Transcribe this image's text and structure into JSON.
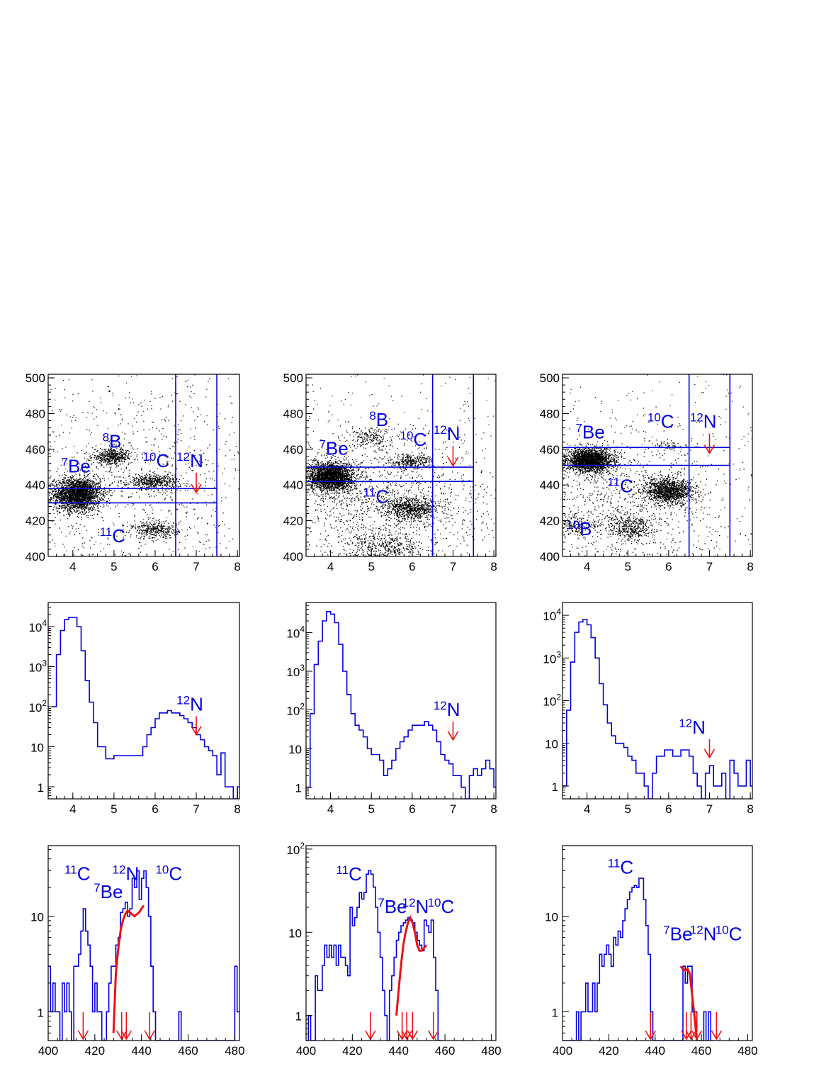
{
  "colors": {
    "frame": "#000000",
    "hist": "#0000dd",
    "gate": "#0000dd",
    "fit": "#ee1111",
    "arrow": "#ee1111",
    "scatter": "#000000",
    "labels": "#0000dd"
  },
  "chart_data": [
    {
      "type": "scatter",
      "panel": "row1-col1",
      "xlim": [
        3.4,
        8.05
      ],
      "ylim": [
        400,
        502
      ],
      "xticks": [
        4,
        5,
        6,
        7,
        8
      ],
      "yticks": [
        400,
        420,
        440,
        460,
        480,
        500
      ],
      "clusters": [
        {
          "x": 4.1,
          "y": 435,
          "sx": 0.28,
          "sy": 4.5,
          "n": 2600
        },
        {
          "x": 4.95,
          "y": 456,
          "sx": 0.25,
          "sy": 2.2,
          "n": 500
        },
        {
          "x": 5.95,
          "y": 442,
          "sx": 0.32,
          "sy": 2.2,
          "n": 500
        },
        {
          "x": 6.0,
          "y": 415,
          "sx": 0.28,
          "sy": 2.5,
          "n": 330
        },
        {
          "x": 5.5,
          "y": 440,
          "sx": 1.6,
          "sy": 28,
          "n": 700
        }
      ],
      "gate": {
        "x": [
          6.5,
          7.5
        ],
        "y": [
          430,
          438
        ]
      },
      "labels": [
        {
          "iso": "7",
          "el": "Be",
          "x": 3.72,
          "y": 447
        },
        {
          "iso": "8",
          "el": "B",
          "x": 4.72,
          "y": 461
        },
        {
          "iso": "10",
          "el": "C",
          "x": 5.7,
          "y": 450
        },
        {
          "iso": "11",
          "el": "C",
          "x": 4.65,
          "y": 408
        },
        {
          "iso": "12",
          "el": "N",
          "x": 6.52,
          "y": 450
        }
      ],
      "arrows_x": [
        7.0
      ]
    },
    {
      "type": "scatter",
      "panel": "row1-col2",
      "xlim": [
        3.4,
        8.05
      ],
      "ylim": [
        400,
        502
      ],
      "xticks": [
        4,
        5,
        6,
        7,
        8
      ],
      "yticks": [
        400,
        420,
        440,
        460,
        480,
        500
      ],
      "clusters": [
        {
          "x": 4.0,
          "y": 445,
          "sx": 0.27,
          "sy": 4,
          "n": 2500
        },
        {
          "x": 6.0,
          "y": 427,
          "sx": 0.33,
          "sy": 3,
          "n": 650
        },
        {
          "x": 5.95,
          "y": 453,
          "sx": 0.28,
          "sy": 2,
          "n": 300
        },
        {
          "x": 5.0,
          "y": 466,
          "sx": 0.3,
          "sy": 3,
          "n": 200
        },
        {
          "x": 5.3,
          "y": 405,
          "sx": 0.45,
          "sy": 4,
          "n": 400
        },
        {
          "x": 5.3,
          "y": 430,
          "sx": 1.3,
          "sy": 18,
          "n": 1300
        }
      ],
      "gate": {
        "x": [
          6.5,
          7.5
        ],
        "y": [
          442,
          450
        ]
      },
      "labels": [
        {
          "iso": "7",
          "el": "Be",
          "x": 3.72,
          "y": 457
        },
        {
          "iso": "8",
          "el": "B",
          "x": 4.95,
          "y": 473
        },
        {
          "iso": "10",
          "el": "C",
          "x": 5.7,
          "y": 462
        },
        {
          "iso": "11",
          "el": "C",
          "x": 4.8,
          "y": 430
        },
        {
          "iso": "12",
          "el": "N",
          "x": 6.52,
          "y": 465
        }
      ],
      "arrows_x": [
        7.0
      ]
    },
    {
      "type": "scatter",
      "panel": "row1-col3",
      "xlim": [
        3.4,
        8.05
      ],
      "ylim": [
        400,
        502
      ],
      "xticks": [
        4,
        5,
        6,
        7,
        8
      ],
      "yticks": [
        400,
        420,
        440,
        460,
        480,
        500
      ],
      "clusters": [
        {
          "x": 4.05,
          "y": 454,
          "sx": 0.28,
          "sy": 3.2,
          "n": 2300
        },
        {
          "x": 6.0,
          "y": 437,
          "sx": 0.3,
          "sy": 3.5,
          "n": 1300
        },
        {
          "x": 5.05,
          "y": 416,
          "sx": 0.25,
          "sy": 3,
          "n": 350
        },
        {
          "x": 3.7,
          "y": 418,
          "sx": 0.3,
          "sy": 3,
          "n": 200
        },
        {
          "x": 6.0,
          "y": 462,
          "sx": 0.25,
          "sy": 1.5,
          "n": 60
        },
        {
          "x": 5.0,
          "y": 430,
          "sx": 1.2,
          "sy": 18,
          "n": 900
        }
      ],
      "gate": {
        "x": [
          6.5,
          7.5
        ],
        "y": [
          451,
          461
        ]
      },
      "labels": [
        {
          "iso": "7",
          "el": "Be",
          "x": 3.72,
          "y": 466
        },
        {
          "iso": "10",
          "el": "C",
          "x": 5.48,
          "y": 472
        },
        {
          "iso": "11",
          "el": "C",
          "x": 4.5,
          "y": 436
        },
        {
          "iso": "10",
          "el": "B",
          "x": 3.49,
          "y": 412
        },
        {
          "iso": "12",
          "el": "N",
          "x": 6.52,
          "y": 472
        }
      ],
      "arrows_x": [
        7.0
      ]
    },
    {
      "type": "histogram",
      "panel": "row2-col1",
      "log": true,
      "xlim": [
        3.4,
        8.05
      ],
      "ylim": [
        0.5,
        40000
      ],
      "xticks": [
        4,
        5,
        6,
        7,
        8
      ],
      "yticks": [
        1,
        10,
        100,
        1000,
        10000
      ],
      "ytick_labels": [
        [
          "1",
          ""
        ],
        [
          "10",
          ""
        ],
        [
          "10",
          "2"
        ],
        [
          "10",
          "3"
        ],
        [
          "10",
          "4"
        ]
      ],
      "x_start": 3.5,
      "bin_width": 0.1,
      "values": [
        100,
        2000,
        8000,
        15000,
        17000,
        17000,
        10000,
        2500,
        450,
        130,
        40,
        10,
        10,
        5,
        5,
        6,
        6,
        6,
        6,
        6,
        6,
        6,
        10,
        20,
        30,
        50,
        70,
        70,
        80,
        70,
        70,
        60,
        50,
        40,
        30,
        20,
        15,
        10,
        8,
        6,
        2,
        7,
        1,
        1,
        0.5,
        1
      ],
      "label": {
        "iso": "12",
        "el": "N",
        "x": 6.52,
        "y": 80
      },
      "arrows_x": [
        7.0
      ]
    },
    {
      "type": "histogram",
      "panel": "row2-col2",
      "log": true,
      "xlim": [
        3.4,
        8.05
      ],
      "ylim": [
        0.5,
        60000
      ],
      "xticks": [
        4,
        5,
        6,
        7,
        8
      ],
      "yticks": [
        1,
        10,
        100,
        1000,
        10000
      ],
      "ytick_labels": [
        [
          "1",
          ""
        ],
        [
          "10",
          ""
        ],
        [
          "10",
          "2"
        ],
        [
          "10",
          "3"
        ],
        [
          "10",
          "4"
        ]
      ],
      "x_start": 3.4,
      "bin_width": 0.1,
      "values": [
        1,
        80,
        1500,
        6000,
        20000,
        35000,
        30000,
        18000,
        5000,
        1000,
        250,
        80,
        40,
        30,
        20,
        10,
        7,
        7,
        5,
        2,
        3,
        5,
        10,
        15,
        20,
        30,
        40,
        40,
        40,
        50,
        40,
        30,
        15,
        7,
        5,
        4,
        2,
        2,
        1,
        0.5,
        2,
        3,
        2,
        3,
        5,
        3,
        1
      ],
      "label": {
        "iso": "12",
        "el": "N",
        "x": 6.52,
        "y": 70
      },
      "arrows_x": [
        7.0
      ]
    },
    {
      "type": "histogram",
      "panel": "row2-col3",
      "log": true,
      "xlim": [
        3.4,
        8.05
      ],
      "ylim": [
        0.5,
        20000
      ],
      "xticks": [
        4,
        5,
        6,
        7,
        8
      ],
      "yticks": [
        1,
        10,
        100,
        1000,
        10000
      ],
      "ytick_labels": [
        [
          "1",
          ""
        ],
        [
          "10",
          ""
        ],
        [
          "10",
          "2"
        ],
        [
          "10",
          "3"
        ],
        [
          "10",
          "4"
        ]
      ],
      "x_start": 3.4,
      "bin_width": 0.1,
      "values": [
        1,
        60,
        800,
        4000,
        7000,
        8000,
        6000,
        3000,
        1000,
        250,
        80,
        30,
        15,
        10,
        10,
        8,
        5,
        4,
        2,
        2,
        1,
        0.5,
        2,
        5,
        5,
        7,
        7,
        5,
        5,
        7,
        7,
        5,
        2,
        1,
        0.5,
        2,
        3,
        1,
        1,
        2,
        0.5,
        4,
        2,
        1,
        1,
        4,
        1
      ],
      "label": {
        "iso": "12",
        "el": "N",
        "x": 6.25,
        "y": 17
      },
      "arrows_x": [
        7.0
      ]
    },
    {
      "type": "histogram",
      "panel": "row3-col1",
      "log": true,
      "xlim": [
        400,
        482
      ],
      "ylim": [
        0.5,
        55
      ],
      "xticks": [
        400,
        420,
        440,
        460,
        480
      ],
      "yticks": [
        1,
        10
      ],
      "ytick_labels": [
        [
          "1",
          ""
        ],
        [
          "10",
          ""
        ]
      ],
      "x_start": 400,
      "bin_width": 1,
      "values": [
        3,
        1,
        2,
        1,
        1,
        0.5,
        2,
        1,
        2,
        1,
        0.5,
        3,
        3,
        4,
        7,
        12,
        7,
        5,
        3,
        1,
        2,
        1,
        1,
        0.5,
        0.5,
        1,
        2,
        3,
        3,
        5,
        6,
        11,
        12,
        14,
        10,
        12,
        25,
        20,
        30,
        15,
        25,
        30,
        20,
        10,
        3,
        1,
        0.5,
        0.5,
        0.5,
        0.5,
        0.5,
        0.5,
        0.5,
        0.5,
        0.5,
        0.5,
        1,
        0.5,
        0.5,
        0.5,
        0.5,
        0.5,
        0.5,
        0.5,
        0.5,
        0.5,
        0.5,
        0.5,
        0.5,
        0.5,
        0.5,
        0.5,
        0.5,
        0.5,
        0.5,
        0.5,
        0.5,
        0.5,
        0.5,
        0.5,
        3,
        1
      ],
      "fit": {
        "x": [
          428,
          429,
          430,
          431,
          432,
          433,
          434,
          435,
          436,
          437,
          438,
          439,
          440,
          441
        ],
        "y": [
          0.6,
          2.5,
          4.5,
          7,
          9,
          10.5,
          11.5,
          11,
          10.5,
          10,
          10.5,
          11,
          12,
          13
        ]
      },
      "labels": [
        {
          "iso": "11",
          "el": "C",
          "x": 407,
          "y": 24
        },
        {
          "iso": "7",
          "el": "Be",
          "x": 419.5,
          "y": 15.5
        },
        {
          "iso": "12",
          "el": "N",
          "x": 427.5,
          "y": 24
        },
        {
          "iso": "10",
          "el": "C",
          "x": 446,
          "y": 24
        }
      ],
      "arrows_x": [
        415,
        431.5,
        433.5,
        443.5
      ]
    },
    {
      "type": "histogram",
      "panel": "row3-col2",
      "log": true,
      "xlim": [
        400,
        482
      ],
      "ylim": [
        0.5,
        110
      ],
      "xticks": [
        400,
        420,
        440,
        460,
        480
      ],
      "yticks": [
        1,
        10,
        100
      ],
      "ytick_labels": [
        [
          "1",
          ""
        ],
        [
          "10",
          ""
        ],
        [
          "10",
          "2"
        ]
      ],
      "x_start": 400,
      "bin_width": 1,
      "values": [
        0.5,
        1,
        0.5,
        0.5,
        3,
        2,
        2,
        4,
        7,
        5,
        7,
        5,
        7,
        4,
        7,
        5,
        5,
        4,
        3,
        20,
        12,
        15,
        20,
        30,
        25,
        30,
        50,
        55,
        50,
        35,
        20,
        10,
        5,
        2,
        1,
        0.5,
        2,
        3,
        5,
        8,
        10,
        12,
        13,
        14,
        15,
        14,
        13,
        10,
        8,
        7,
        6,
        14,
        12,
        10,
        14,
        5,
        2,
        0.5,
        0.5
      ],
      "fit": {
        "x": [
          439,
          440,
          441,
          442,
          443,
          444,
          445,
          446,
          447,
          448,
          449,
          450,
          451,
          452
        ],
        "y": [
          1,
          2,
          4,
          7,
          10,
          13,
          15,
          13,
          10,
          7,
          6,
          6,
          6.5,
          7
        ]
      },
      "labels": [
        {
          "iso": "11",
          "el": "C",
          "x": 413,
          "y": 42
        },
        {
          "iso": "7",
          "el": "Be",
          "x": 431,
          "y": 17
        },
        {
          "iso": "12",
          "el": "N",
          "x": 441.5,
          "y": 17
        },
        {
          "iso": "10",
          "el": "C",
          "x": 452.5,
          "y": 17
        }
      ],
      "arrows_x": [
        427.8,
        441.5,
        443.5,
        446,
        455
      ]
    },
    {
      "type": "histogram",
      "panel": "row3-col3",
      "log": true,
      "xlim": [
        400,
        482
      ],
      "ylim": [
        0.5,
        55
      ],
      "xticks": [
        400,
        420,
        440,
        460,
        480
      ],
      "yticks": [
        1,
        10
      ],
      "ytick_labels": [
        [
          "1",
          ""
        ],
        [
          "10",
          ""
        ]
      ],
      "x_start": 400,
      "bin_width": 1,
      "values": [
        0.5,
        0.5,
        0.5,
        0.5,
        0.5,
        0.5,
        1,
        0.5,
        1,
        1,
        2,
        1,
        1,
        2,
        1,
        2,
        4,
        3,
        4,
        5,
        4,
        3,
        6,
        5,
        7,
        6,
        9,
        12,
        15,
        18,
        20,
        21,
        20,
        25,
        25,
        15,
        8,
        4,
        1,
        0.5,
        0.5,
        0.5,
        0.5,
        0.5,
        0.5,
        0.5,
        0.5,
        0.5,
        0.5,
        0.5,
        0.5,
        0.5,
        3,
        2,
        3,
        3,
        1,
        1,
        0.5,
        0.5,
        0.5,
        1,
        0.5,
        1,
        0.5
      ],
      "fit": {
        "x": [
          451,
          452,
          453,
          454,
          455,
          456,
          457,
          458
        ],
        "y": [
          3,
          2.8,
          2.7,
          2.8,
          2.5,
          1.5,
          0.9,
          0.5
        ]
      },
      "labels": [
        {
          "iso": "11",
          "el": "C",
          "x": 419.5,
          "y": 28
        },
        {
          "iso": "7",
          "el": "Be",
          "x": 443.5,
          "y": 5.6
        },
        {
          "iso": "12",
          "el": "N",
          "x": 455,
          "y": 5.6
        },
        {
          "iso": "10",
          "el": "C",
          "x": 466,
          "y": 5.6
        }
      ],
      "arrows_x": [
        438,
        453.5,
        455.5,
        458,
        466.5
      ]
    }
  ]
}
